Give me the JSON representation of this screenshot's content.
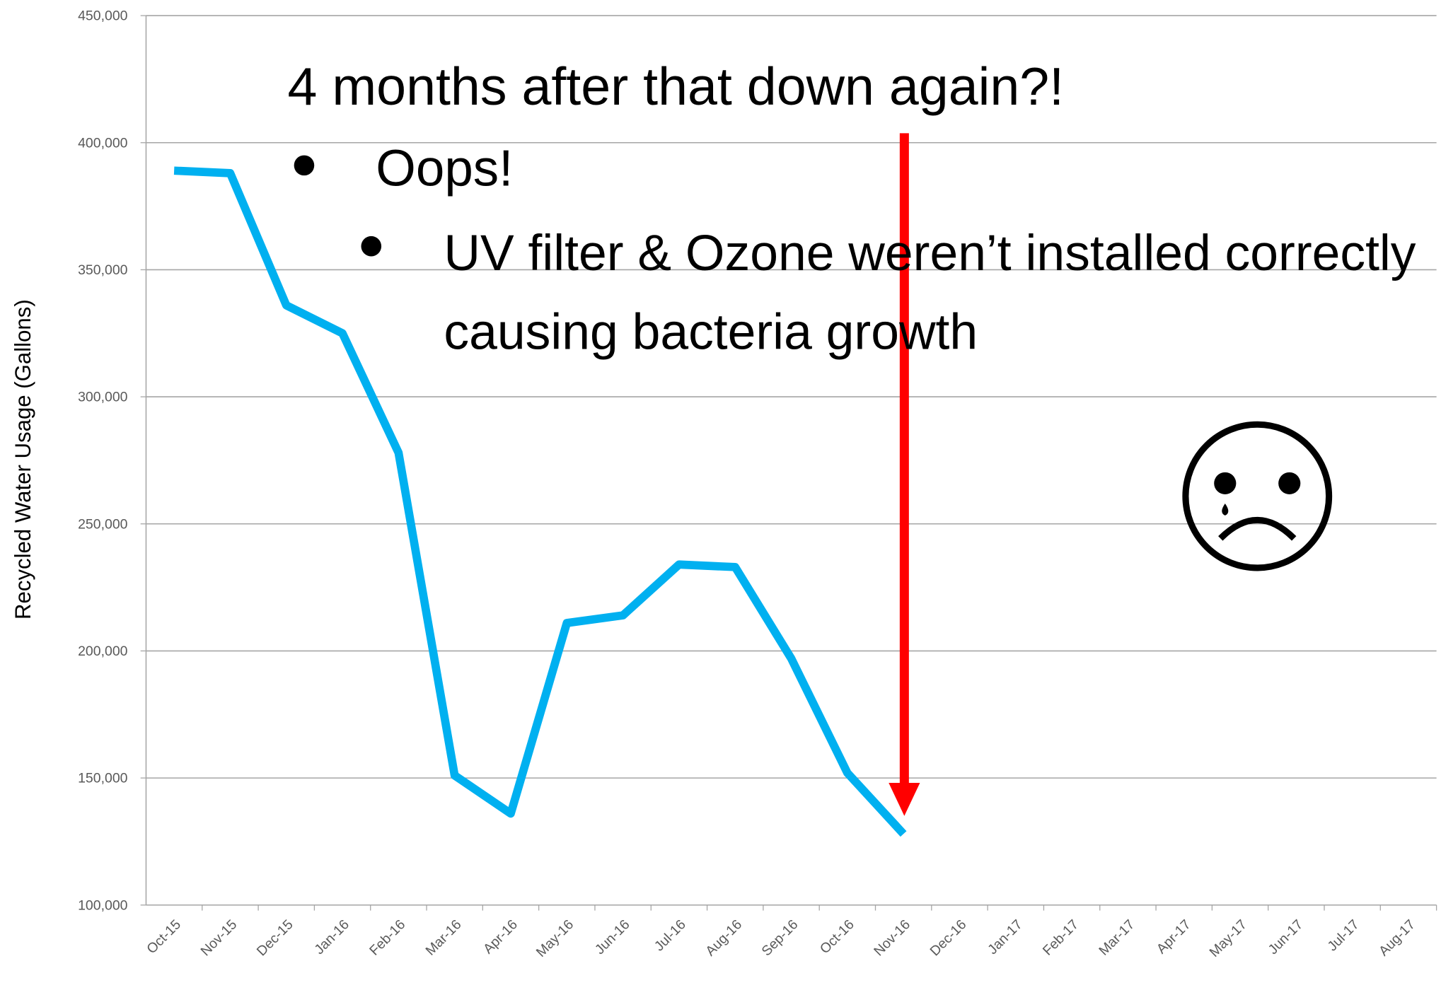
{
  "chart_data": {
    "type": "line",
    "y_axis_label": "Recycled Water Usage (Gallons)",
    "categories": [
      "Oct-15",
      "Nov-15",
      "Dec-15",
      "Jan-16",
      "Feb-16",
      "Mar-16",
      "Apr-16",
      "May-16",
      "Jun-16",
      "Jul-16",
      "Aug-16",
      "Sep-16",
      "Oct-16",
      "Nov-16",
      "Dec-16",
      "Jan-17",
      "Feb-17",
      "Mar-17",
      "Apr-17",
      "May-17",
      "Jun-17",
      "Jul-17",
      "Aug-17"
    ],
    "series": [
      {
        "color": "#00b0f0",
        "values": [
          389000,
          388000,
          336000,
          325000,
          278000,
          151000,
          136000,
          211000,
          214000,
          234000,
          233000,
          197000,
          152000,
          128000,
          null,
          null,
          null,
          null,
          null,
          null,
          null,
          null,
          null
        ]
      }
    ],
    "ylim": [
      100000,
      450000
    ],
    "yticks": [
      {
        "value": 100000,
        "label": "100,000"
      },
      {
        "value": 150000,
        "label": "150,000"
      },
      {
        "value": 200000,
        "label": "200,000"
      },
      {
        "value": 250000,
        "label": "250,000"
      },
      {
        "value": 300000,
        "label": "300,000"
      },
      {
        "value": 350000,
        "label": "350,000"
      },
      {
        "value": 400000,
        "label": "400,000"
      },
      {
        "value": 450000,
        "label": "450,000"
      }
    ],
    "grid": true,
    "annotations": {
      "headline": "4 months after that down again?!",
      "bullet": "Oops!",
      "sub_bullet": "UV filter & Ozone weren’t installed correctly causing bacteria growth"
    }
  }
}
